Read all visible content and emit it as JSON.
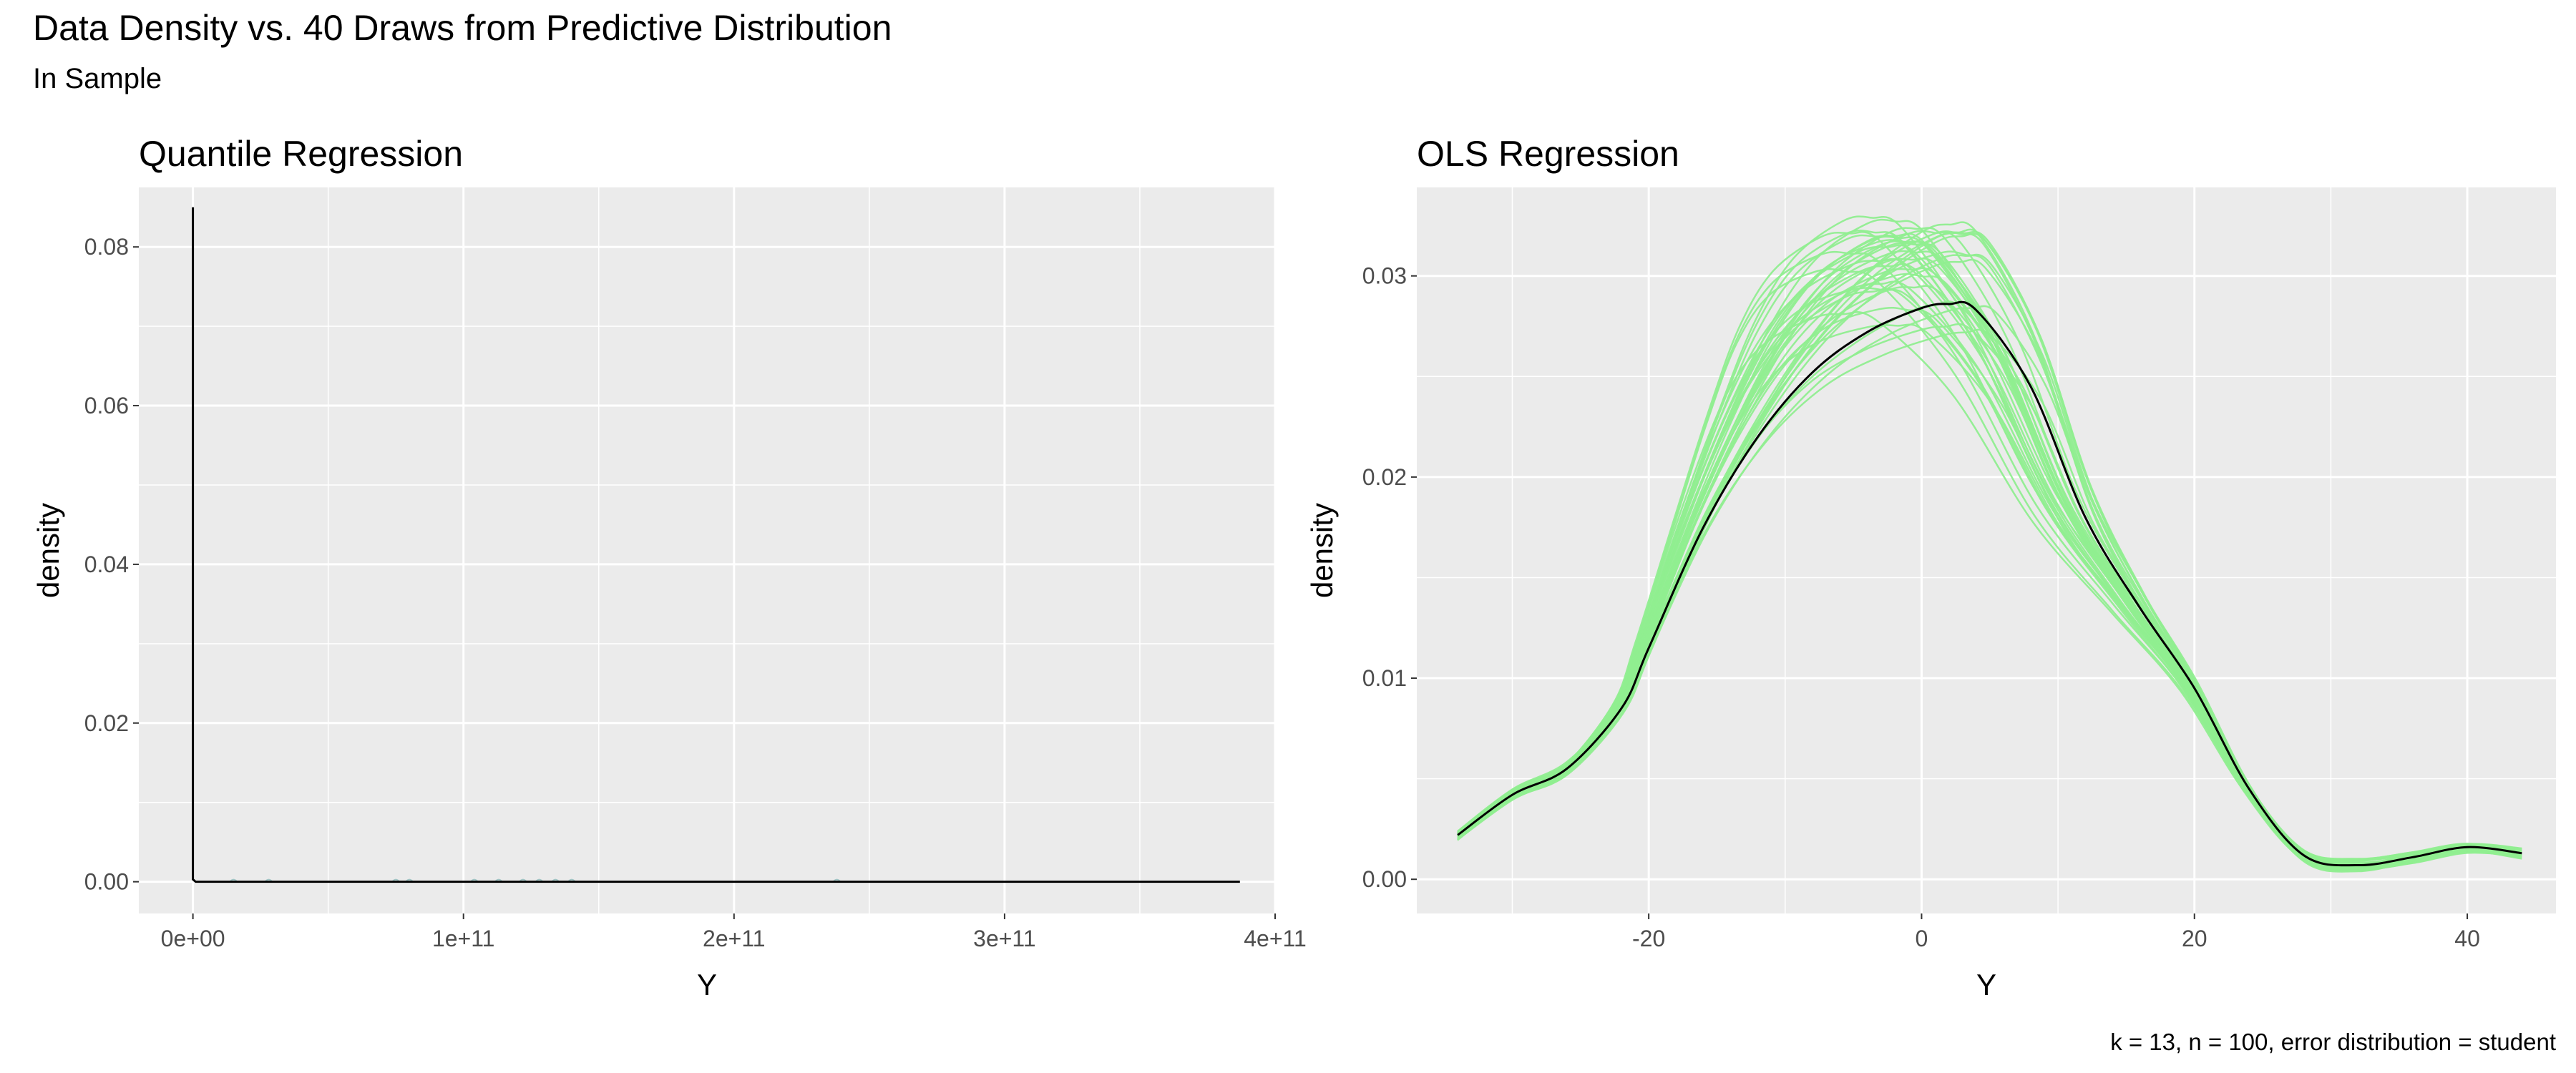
{
  "title": "Data Density vs. 40 Draws from Predictive Distribution",
  "subtitle": "In Sample",
  "caption": "k = 13, n = 100, error distribution = student",
  "colors": {
    "panel_bg": "#ebebeb",
    "grid": "#ffffff",
    "data_line": "#000000",
    "draw_line": "#90ee90",
    "draw_line_left": "#8fbcbc"
  },
  "chart_data": [
    {
      "type": "line",
      "title": "Quantile Regression",
      "xlabel": "Y",
      "ylabel": "density",
      "xlim": [
        -20000000000.0,
        400000000000.0
      ],
      "ylim": [
        -0.004,
        0.0875
      ],
      "x_ticks": [
        0,
        100000000000.0,
        200000000000.0,
        300000000000.0,
        400000000000.0
      ],
      "x_tick_labels": [
        "0e+00",
        "1e+11",
        "2e+11",
        "3e+11",
        "4e+11"
      ],
      "y_ticks": [
        0.0,
        0.02,
        0.04,
        0.06,
        0.08
      ],
      "y_tick_labels": [
        "0.00",
        "0.02",
        "0.04",
        "0.06",
        "0.08"
      ],
      "grid": true,
      "data_density": {
        "x": [
          0,
          0,
          1000000000.0,
          387000000000.0
        ],
        "y": [
          0.085,
          0.0003,
          0.0,
          0.0
        ]
      },
      "draw_bumps_x": [
        15000000000.0,
        28000000000.0,
        75000000000.0,
        80000000000.0,
        104000000000.0,
        113000000000.0,
        122000000000.0,
        128000000000.0,
        134000000000.0,
        140000000000.0,
        238000000000.0
      ]
    },
    {
      "type": "line",
      "title": "OLS Regression",
      "xlabel": "Y",
      "ylabel": "density",
      "xlim": [
        -37,
        46.5
      ],
      "ylim": [
        -0.0017,
        0.0344
      ],
      "x_ticks": [
        -20,
        0,
        20,
        40
      ],
      "x_tick_labels": [
        "-20",
        "0",
        "20",
        "40"
      ],
      "y_ticks": [
        0.0,
        0.01,
        0.02,
        0.03
      ],
      "y_tick_labels": [
        "0.00",
        "0.01",
        "0.02",
        "0.03"
      ],
      "grid": true,
      "data_density": {
        "x": [
          -34,
          -30,
          -26,
          -22,
          -20,
          -16,
          -12,
          -8,
          -4,
          0,
          2,
          4,
          8,
          12,
          16,
          20,
          24,
          28,
          32,
          36,
          40,
          44
        ],
        "y": [
          0.0022,
          0.0042,
          0.0055,
          0.0085,
          0.0115,
          0.0175,
          0.022,
          0.0252,
          0.0272,
          0.0284,
          0.0286,
          0.0283,
          0.0245,
          0.018,
          0.0135,
          0.0095,
          0.0045,
          0.0012,
          0.0007,
          0.0011,
          0.0016,
          0.0013
        ]
      },
      "n_draws": 40,
      "draws_peak_range": [
        0.0275,
        0.0328
      ],
      "draws_peak_x_range": [
        -6,
        4
      ]
    }
  ]
}
